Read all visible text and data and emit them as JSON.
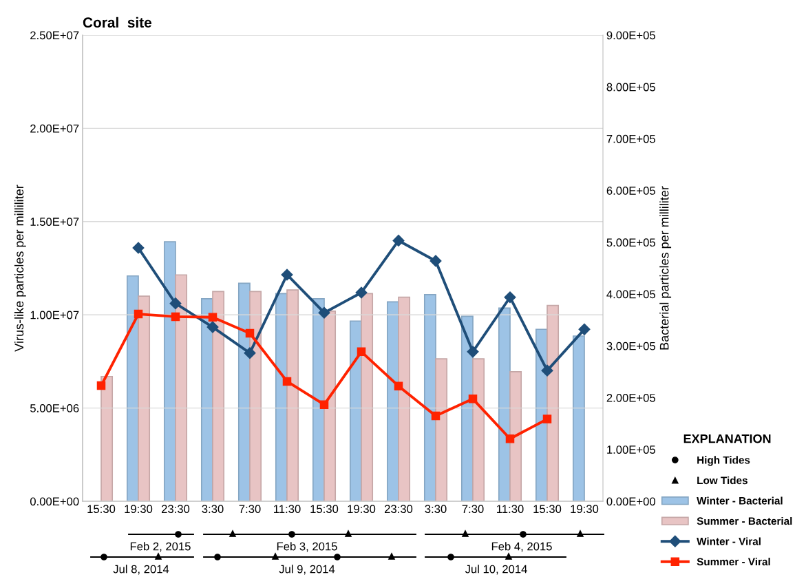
{
  "chart_data": [
    {
      "type": "bar",
      "title": "Coral  site",
      "ylabel": "Virus-like particles per milliliter",
      "y2label": "Bacterial particles per milliliter",
      "legend_title": "EXPLANATION",
      "legend": "bottom right",
      "grid": "y",
      "categories": [
        "15:30",
        "19:30",
        "23:30",
        "3:30",
        "7:30",
        "11:30",
        "15:30",
        "19:30",
        "23:30",
        "3:30",
        "7:30",
        "11:30",
        "15:30",
        "19:30"
      ],
      "ylim": [
        0,
        25000000
      ],
      "yticks": [
        {
          "value": 0,
          "label": "0.00E+00"
        },
        {
          "value": 5000000,
          "label": "5.00E+06"
        },
        {
          "value": 10000000,
          "label": "1.00E+07"
        },
        {
          "value": 15000000,
          "label": "1.50E+07"
        },
        {
          "value": 20000000,
          "label": "2.00E+07"
        },
        {
          "value": 25000000,
          "label": "2.50E+07"
        }
      ],
      "y2lim": [
        0,
        900000
      ],
      "y2ticks": [
        {
          "value": 0,
          "label": "0.00E+00"
        },
        {
          "value": 100000,
          "label": "1.00E+05"
        },
        {
          "value": 200000,
          "label": "2.00E+05"
        },
        {
          "value": 300000,
          "label": "3.00E+05"
        },
        {
          "value": 400000,
          "label": "4.00E+05"
        },
        {
          "value": 500000,
          "label": "5.00E+05"
        },
        {
          "value": 600000,
          "label": "6.00E+05"
        },
        {
          "value": 700000,
          "label": "7.00E+05"
        },
        {
          "value": 800000,
          "label": "8.00E+05"
        },
        {
          "value": 900000,
          "label": "9.00E+05"
        }
      ],
      "series": [
        {
          "name": "Winter - Bacterial",
          "axis": "y2",
          "color": "#9dc3e6",
          "values": [
            null,
            435000,
            501000,
            391000,
            421000,
            401000,
            391000,
            348000,
            385000,
            399000,
            357000,
            373000,
            332000,
            319000
          ]
        },
        {
          "name": "Summer - Bacterial",
          "axis": "y2",
          "color": "#e8c4c4",
          "values": [
            241000,
            396000,
            437000,
            405000,
            405000,
            408000,
            367000,
            401000,
            394000,
            275000,
            275000,
            250000,
            378000,
            null
          ]
        },
        {
          "name": "Winter - Viral",
          "type": "line",
          "marker": "diamond",
          "color": "#1f4e79",
          "values": [
            null,
            13590000,
            10610000,
            9340000,
            7950000,
            12150000,
            10110000,
            11190000,
            13980000,
            12890000,
            8020000,
            10940000,
            7010000,
            9220000
          ]
        },
        {
          "name": "Summer - Viral",
          "type": "line",
          "marker": "square",
          "color": "#ff2200",
          "values": [
            6200000,
            10040000,
            9900000,
            9870000,
            9010000,
            6430000,
            5180000,
            8020000,
            6180000,
            4580000,
            5490000,
            3350000,
            4410000,
            null
          ]
        }
      ]
    },
    {
      "type": "other",
      "annotations": [
        "Feb 2, 2015",
        "Feb 3, 2015",
        "Feb 4, 2015",
        "Jul 8, 2014",
        "Jul 9, 2014",
        "Jul 10, 2014",
        "High Tides",
        "Low Tides"
      ]
    }
  ]
}
